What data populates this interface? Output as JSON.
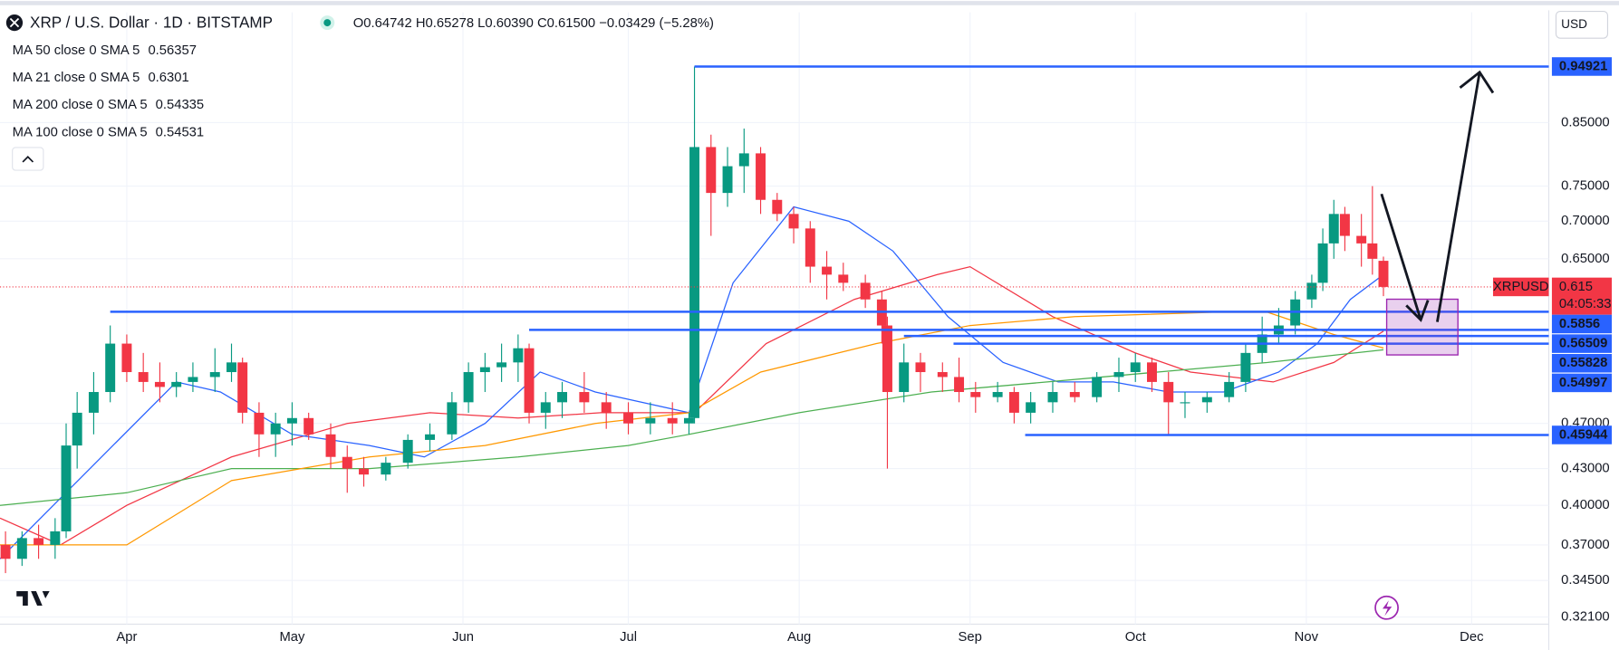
{
  "header": {
    "symbol": "XRP / U.S. Dollar · 1D · BITSTAMP",
    "ohlc": "O0.64742 H0.65278 L0.60390 C0.61500 −0.03429 (−5.28%)",
    "currency": "USD"
  },
  "chart_data": {
    "type": "candlestick",
    "log_scale": true,
    "grid": true,
    "up_color": "#089981",
    "down_color": "#f23645",
    "xlim": [
      -23,
      258
    ],
    "xticks": [
      {
        "value": 0,
        "label": "Apr"
      },
      {
        "value": 30,
        "label": "May"
      },
      {
        "value": 61,
        "label": "Jun"
      },
      {
        "value": 91,
        "label": "Jul"
      },
      {
        "value": 122,
        "label": "Aug"
      },
      {
        "value": 153,
        "label": "Sep"
      },
      {
        "value": 183,
        "label": "Oct"
      },
      {
        "value": 214,
        "label": "Nov"
      },
      {
        "value": 244,
        "label": "Dec"
      }
    ],
    "ylim": [
      0.3165,
      1.056
    ],
    "yticks": [
      {
        "value": 0.321,
        "label": "0.32100"
      },
      {
        "value": 0.345,
        "label": "0.34500"
      },
      {
        "value": 0.37,
        "label": "0.37000"
      },
      {
        "value": 0.4,
        "label": "0.40000"
      },
      {
        "value": 0.43,
        "label": "0.43000"
      },
      {
        "value": 0.47,
        "label": "0.47000"
      },
      {
        "value": 0.65,
        "label": "0.65000"
      },
      {
        "value": 0.7,
        "label": "0.70000"
      },
      {
        "value": 0.75,
        "label": "0.75000"
      },
      {
        "value": 0.85,
        "label": "0.85000"
      }
    ],
    "x": [
      -22,
      -19,
      -16,
      -13,
      -11,
      -9,
      -6,
      -3,
      0,
      3,
      6,
      9,
      12,
      16,
      19,
      21,
      24,
      27,
      30,
      33,
      37,
      40,
      43,
      47,
      51,
      55,
      59,
      62,
      65,
      68,
      71,
      73,
      76,
      79,
      83,
      87,
      91,
      95,
      99,
      102,
      103,
      106,
      109,
      112,
      115,
      118,
      121,
      124,
      127,
      130,
      134,
      137,
      138,
      141,
      144,
      148,
      151,
      154,
      158,
      161,
      164,
      168,
      172,
      176,
      180,
      183,
      186,
      189,
      192,
      196,
      200,
      203,
      206,
      209,
      212,
      215,
      217,
      219,
      221,
      224,
      226,
      228
    ],
    "open": [
      0.37,
      0.36,
      0.375,
      0.37,
      0.38,
      0.45,
      0.48,
      0.5,
      0.55,
      0.52,
      0.51,
      0.505,
      0.51,
      0.515,
      0.52,
      0.53,
      0.48,
      0.46,
      0.47,
      0.475,
      0.46,
      0.44,
      0.43,
      0.425,
      0.435,
      0.455,
      0.46,
      0.49,
      0.52,
      0.525,
      0.53,
      0.545,
      0.48,
      0.49,
      0.5,
      0.49,
      0.48,
      0.47,
      0.475,
      0.47,
      0.475,
      0.81,
      0.74,
      0.78,
      0.8,
      0.73,
      0.71,
      0.69,
      0.64,
      0.63,
      0.62,
      0.6,
      0.57,
      0.5,
      0.53,
      0.52,
      0.515,
      0.5,
      0.495,
      0.5,
      0.48,
      0.49,
      0.5,
      0.495,
      0.515,
      0.52,
      0.53,
      0.51,
      0.49,
      0.49,
      0.495,
      0.51,
      0.54,
      0.56,
      0.57,
      0.6,
      0.62,
      0.67,
      0.71,
      0.68,
      0.67,
      0.64742
    ],
    "high": [
      0.38,
      0.38,
      0.385,
      0.39,
      0.47,
      0.5,
      0.52,
      0.57,
      0.56,
      0.54,
      0.53,
      0.52,
      0.53,
      0.545,
      0.55,
      0.535,
      0.49,
      0.48,
      0.49,
      0.48,
      0.47,
      0.45,
      0.44,
      0.44,
      0.46,
      0.47,
      0.5,
      0.53,
      0.54,
      0.55,
      0.56,
      0.55,
      0.5,
      0.51,
      0.52,
      0.5,
      0.49,
      0.49,
      0.49,
      0.48,
      0.94921,
      0.83,
      0.81,
      0.84,
      0.81,
      0.74,
      0.72,
      0.7,
      0.66,
      0.645,
      0.63,
      0.61,
      0.58,
      0.55,
      0.54,
      0.53,
      0.535,
      0.51,
      0.51,
      0.505,
      0.5,
      0.51,
      0.51,
      0.52,
      0.535,
      0.54,
      0.535,
      0.52,
      0.5,
      0.5,
      0.52,
      0.55,
      0.58,
      0.59,
      0.61,
      0.63,
      0.69,
      0.73,
      0.72,
      0.71,
      0.75,
      0.65278
    ],
    "low": [
      0.35,
      0.355,
      0.36,
      0.36,
      0.375,
      0.43,
      0.46,
      0.49,
      0.51,
      0.5,
      0.49,
      0.495,
      0.5,
      0.5,
      0.51,
      0.47,
      0.44,
      0.44,
      0.45,
      0.455,
      0.43,
      0.41,
      0.415,
      0.42,
      0.43,
      0.445,
      0.455,
      0.48,
      0.5,
      0.51,
      0.51,
      0.47,
      0.465,
      0.475,
      0.48,
      0.465,
      0.46,
      0.46,
      0.46,
      0.46,
      0.47,
      0.68,
      0.72,
      0.74,
      0.71,
      0.7,
      0.67,
      0.62,
      0.6,
      0.61,
      0.59,
      0.55,
      0.43,
      0.49,
      0.5,
      0.5,
      0.49,
      0.48,
      0.49,
      0.47,
      0.47,
      0.48,
      0.49,
      0.49,
      0.5,
      0.51,
      0.5,
      0.46,
      0.475,
      0.48,
      0.49,
      0.5,
      0.53,
      0.55,
      0.56,
      0.59,
      0.61,
      0.65,
      0.66,
      0.64,
      0.63,
      0.6039
    ],
    "close": [
      0.36,
      0.375,
      0.37,
      0.38,
      0.45,
      0.48,
      0.5,
      0.55,
      0.52,
      0.51,
      0.505,
      0.51,
      0.515,
      0.52,
      0.53,
      0.48,
      0.46,
      0.47,
      0.475,
      0.46,
      0.44,
      0.43,
      0.425,
      0.435,
      0.455,
      0.46,
      0.49,
      0.52,
      0.525,
      0.53,
      0.545,
      0.48,
      0.49,
      0.5,
      0.49,
      0.48,
      0.47,
      0.475,
      0.47,
      0.475,
      0.81,
      0.74,
      0.78,
      0.8,
      0.73,
      0.71,
      0.69,
      0.64,
      0.63,
      0.62,
      0.6,
      0.57,
      0.5,
      0.53,
      0.52,
      0.515,
      0.5,
      0.495,
      0.5,
      0.48,
      0.49,
      0.5,
      0.495,
      0.515,
      0.52,
      0.53,
      0.51,
      0.49,
      0.49,
      0.495,
      0.51,
      0.54,
      0.56,
      0.57,
      0.6,
      0.62,
      0.67,
      0.71,
      0.68,
      0.67,
      0.65,
      0.615
    ],
    "indicators": [
      {
        "name": "MA 50 close 0 SMA 5",
        "last_value": 0.56357,
        "color": "#f23645",
        "x": [
          -23,
          -12,
          0,
          19,
          40,
          55,
          71,
          86,
          103,
          116,
          132,
          147,
          153,
          168,
          183,
          193,
          208,
          219,
          228
        ],
        "values": [
          0.39,
          0.37,
          0.4,
          0.44,
          0.47,
          0.48,
          0.475,
          0.48,
          0.48,
          0.55,
          0.6,
          0.63,
          0.64,
          0.58,
          0.54,
          0.52,
          0.51,
          0.53,
          0.56357
        ]
      },
      {
        "name": "MA 21 close 0 SMA 5",
        "last_value": 0.6301,
        "color": "#2962ff",
        "x": [
          -23,
          9,
          17,
          30,
          44,
          54,
          65,
          75,
          85,
          102,
          110,
          121,
          131,
          139,
          149,
          159,
          169,
          179,
          189,
          199,
          209,
          216,
          222,
          228
        ],
        "values": [
          0.36,
          0.51,
          0.5,
          0.46,
          0.45,
          0.44,
          0.47,
          0.52,
          0.5,
          0.48,
          0.62,
          0.72,
          0.7,
          0.66,
          0.58,
          0.53,
          0.51,
          0.51,
          0.5,
          0.5,
          0.52,
          0.55,
          0.6,
          0.6301
        ]
      },
      {
        "name": "MA 200 close 0 SMA 5",
        "last_value": 0.54335,
        "color": "#4caf50",
        "x": [
          -23,
          0,
          19,
          44,
          71,
          91,
          102,
          122,
          146,
          167,
          187,
          207,
          228
        ],
        "values": [
          0.4,
          0.41,
          0.43,
          0.43,
          0.44,
          0.45,
          0.46,
          0.48,
          0.5,
          0.51,
          0.52,
          0.53,
          0.54335
        ]
      },
      {
        "name": "MA 100 close 0 SMA 5",
        "last_value": 0.54531,
        "color": "#ff9800",
        "x": [
          -23,
          0,
          19,
          44,
          65,
          85,
          102,
          115,
          136,
          153,
          172,
          197,
          207,
          219,
          228
        ],
        "values": [
          0.37,
          0.37,
          0.42,
          0.44,
          0.45,
          0.47,
          0.48,
          0.52,
          0.55,
          0.57,
          0.58,
          0.585,
          0.585,
          0.56,
          0.54531
        ]
      }
    ],
    "price_lines": [
      {
        "value": 0.94921,
        "from": 103
      },
      {
        "value": 0.5856,
        "from": -3
      },
      {
        "value": 0.56509,
        "from": 73
      },
      {
        "value": 0.55828,
        "from": 141
      },
      {
        "value": 0.54997,
        "from": 150
      },
      {
        "value": 0.45944,
        "from": 163
      }
    ],
    "last_price": {
      "name": "XRPUSD",
      "value": 0.615,
      "countdown": "04:05:33"
    }
  }
}
